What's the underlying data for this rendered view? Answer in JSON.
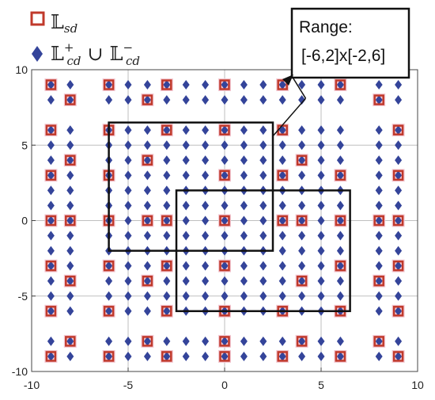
{
  "chart_data": {
    "type": "scatter",
    "xlim": [
      -10,
      10
    ],
    "ylim": [
      -10,
      10
    ],
    "x_ticks": [
      "-10",
      "-5",
      "0",
      "5",
      "10"
    ],
    "y_ticks": [
      "10",
      "5",
      "0",
      "-5",
      "-10"
    ],
    "grid": true,
    "legend_placement": "top-left",
    "legend": {
      "sd": {
        "base": "𝕃",
        "sub": "sd",
        "sup": ""
      },
      "cd": {
        "base": "𝕃",
        "sub": "cd",
        "sup": "+",
        "union": "∪",
        "base2": "𝕃",
        "sub2": "cd",
        "sup2": "−"
      }
    },
    "colors": {
      "sd": "#c0392b",
      "cd": "#34449a",
      "sd_fill": "#f3c9d3",
      "grid": "#bfbfbf"
    },
    "series": [
      {
        "key": "sd",
        "marker": "hollow-square",
        "points": [
          [
            -9,
            9
          ],
          [
            -6,
            9
          ],
          [
            -3,
            9
          ],
          [
            0,
            9
          ],
          [
            3,
            9
          ],
          [
            6,
            9
          ],
          [
            -8,
            8
          ],
          [
            -4,
            8
          ],
          [
            8,
            8
          ],
          [
            -9,
            6
          ],
          [
            -6,
            6
          ],
          [
            -3,
            6
          ],
          [
            0,
            6
          ],
          [
            3,
            6
          ],
          [
            9,
            6
          ],
          [
            -8,
            4
          ],
          [
            -4,
            4
          ],
          [
            4,
            4
          ],
          [
            -9,
            3
          ],
          [
            -6,
            3
          ],
          [
            0,
            3
          ],
          [
            3,
            3
          ],
          [
            6,
            3
          ],
          [
            9,
            3
          ],
          [
            -9,
            0
          ],
          [
            -8,
            0
          ],
          [
            -6,
            0
          ],
          [
            -4,
            0
          ],
          [
            -3,
            0
          ],
          [
            0,
            0
          ],
          [
            3,
            0
          ],
          [
            4,
            0
          ],
          [
            6,
            0
          ],
          [
            8,
            0
          ],
          [
            9,
            0
          ],
          [
            -9,
            -3
          ],
          [
            -6,
            -3
          ],
          [
            -3,
            -3
          ],
          [
            0,
            -3
          ],
          [
            6,
            -3
          ],
          [
            9,
            -3
          ],
          [
            -8,
            -4
          ],
          [
            -4,
            -4
          ],
          [
            4,
            -4
          ],
          [
            8,
            -4
          ],
          [
            -9,
            -6
          ],
          [
            -6,
            -6
          ],
          [
            -3,
            -6
          ],
          [
            0,
            -6
          ],
          [
            3,
            -6
          ],
          [
            6,
            -6
          ],
          [
            9,
            -6
          ],
          [
            -8,
            -8
          ],
          [
            -4,
            -8
          ],
          [
            0,
            -8
          ],
          [
            4,
            -8
          ],
          [
            8,
            -8
          ],
          [
            -9,
            -9
          ],
          [
            -6,
            -9
          ],
          [
            -3,
            -9
          ],
          [
            0,
            -9
          ],
          [
            3,
            -9
          ],
          [
            6,
            -9
          ],
          [
            9,
            -9
          ]
        ]
      },
      {
        "key": "cd",
        "marker": "filled-diamond",
        "columns": [
          -9,
          -8,
          -6,
          -5,
          -4,
          -3,
          -2,
          -1,
          0,
          1,
          2,
          3,
          4,
          5,
          6,
          8,
          9
        ],
        "rows": [
          9,
          8,
          6,
          5,
          4,
          3,
          2,
          1,
          0,
          -1,
          -2,
          -3,
          -4,
          -5,
          -6,
          -8,
          -9
        ]
      }
    ],
    "annotations": [
      {
        "type": "rect",
        "x_range": [
          -6,
          2.5
        ],
        "y_range": [
          -2,
          6.5
        ]
      },
      {
        "type": "rect",
        "x_range": [
          -2.5,
          6.5
        ],
        "y_range": [
          -6,
          2
        ]
      },
      {
        "type": "callout",
        "title": "Range:",
        "text": "[-6,2]x[-2,6]",
        "points_to": [
          4.2,
          8.1
        ]
      }
    ]
  }
}
